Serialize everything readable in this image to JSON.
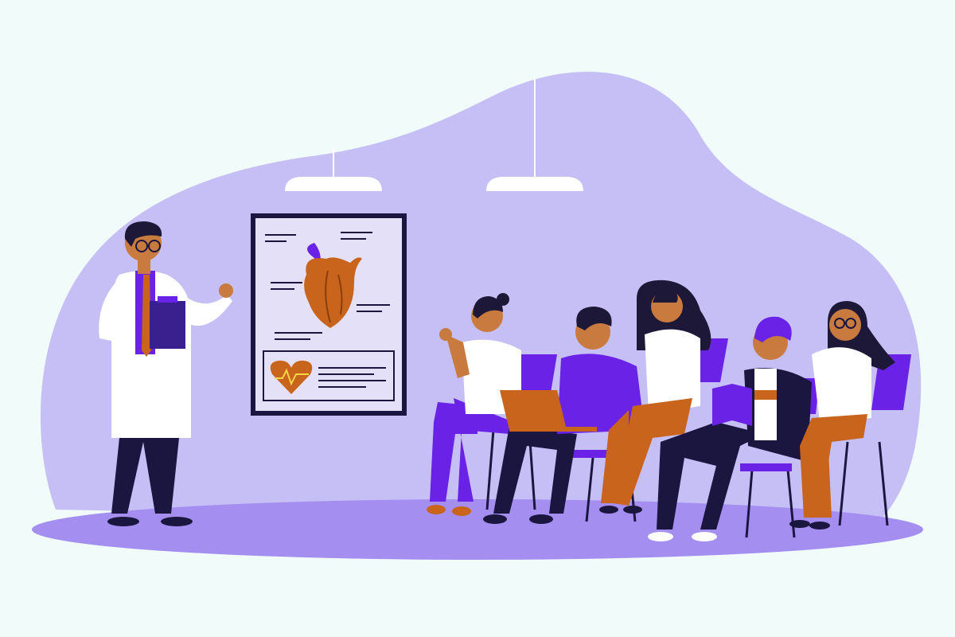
{
  "illustration": {
    "subject": "doctor-lecture-to-students",
    "colors": {
      "background": "#f0fbfa",
      "backdrop_blob": "#c6bff5",
      "floor": "#a48ff1",
      "lamp": "#ffffff",
      "accent_purple": "#6a22e6",
      "accent_orange": "#c8641c",
      "dark_navy": "#1b1640",
      "skin": "#c97a3e",
      "hair": "#1e1838",
      "white_clothes": "#ffffff",
      "poster_frame": "#1b1640",
      "poster_bg": "#e4e0f7"
    },
    "icons": [
      "heart-anatomy-icon",
      "heart-pulse-icon",
      "laptop-icon",
      "book-icon",
      "clipboard-icon",
      "ceiling-lamp-icon"
    ]
  }
}
